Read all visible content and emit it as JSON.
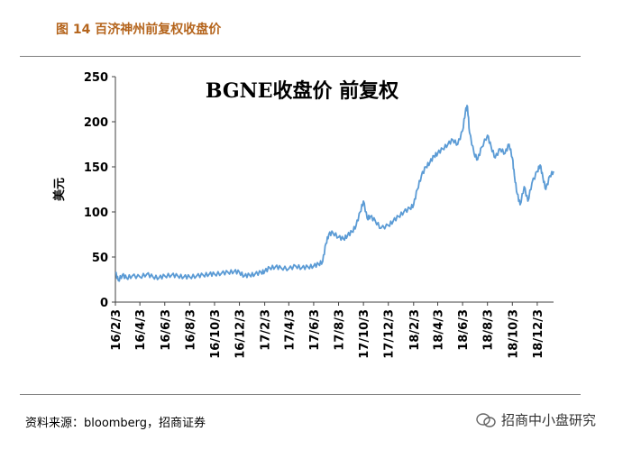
{
  "figure": {
    "caption": "图 14  百济神州前复权收盘价",
    "source": "资料来源：bloomberg，招商证券",
    "brand": "招商中小盘研究"
  },
  "colors": {
    "caption": "#b5651d",
    "line": "#5b9bd5",
    "axis": "#404040"
  },
  "chart_data": {
    "type": "line",
    "title": "BGNE收盘价 前复权",
    "xlabel": "",
    "ylabel": "美元",
    "ylim": [
      0,
      250
    ],
    "yticks": [
      0,
      50,
      100,
      150,
      200,
      250
    ],
    "xtick_labels": [
      "16/2/3",
      "16/4/3",
      "16/6/3",
      "16/8/3",
      "16/10/3",
      "16/12/3",
      "17/2/3",
      "17/4/3",
      "17/6/3",
      "17/8/3",
      "17/10/3",
      "17/12/3",
      "18/2/3",
      "18/4/3",
      "18/6/3",
      "18/8/3",
      "18/10/3",
      "18/12/3"
    ],
    "grid": false,
    "legend": "none",
    "series": [
      {
        "points": [
          [
            "2016-02-03",
            33
          ],
          [
            "2016-02-10",
            24
          ],
          [
            "2016-02-20",
            30
          ],
          [
            "2016-03-01",
            27
          ],
          [
            "2016-03-15",
            29
          ],
          [
            "2016-04-03",
            28
          ],
          [
            "2016-04-20",
            31
          ],
          [
            "2016-05-05",
            28
          ],
          [
            "2016-05-20",
            27
          ],
          [
            "2016-06-03",
            29
          ],
          [
            "2016-06-20",
            30
          ],
          [
            "2016-07-05",
            29
          ],
          [
            "2016-07-20",
            28
          ],
          [
            "2016-08-03",
            28
          ],
          [
            "2016-08-20",
            29
          ],
          [
            "2016-09-05",
            30
          ],
          [
            "2016-09-20",
            31
          ],
          [
            "2016-10-03",
            31
          ],
          [
            "2016-10-20",
            32
          ],
          [
            "2016-11-05",
            33
          ],
          [
            "2016-11-20",
            34
          ],
          [
            "2016-12-03",
            33
          ],
          [
            "2016-12-15",
            29
          ],
          [
            "2016-12-28",
            30
          ],
          [
            "2017-01-10",
            31
          ],
          [
            "2017-01-25",
            33
          ],
          [
            "2017-02-03",
            34
          ],
          [
            "2017-02-15",
            38
          ],
          [
            "2017-03-01",
            39
          ],
          [
            "2017-03-15",
            38
          ],
          [
            "2017-04-03",
            37
          ],
          [
            "2017-04-20",
            40
          ],
          [
            "2017-05-05",
            38
          ],
          [
            "2017-05-20",
            39
          ],
          [
            "2017-06-03",
            40
          ],
          [
            "2017-06-15",
            42
          ],
          [
            "2017-06-25",
            45
          ],
          [
            "2017-07-03",
            65
          ],
          [
            "2017-07-10",
            75
          ],
          [
            "2017-07-20",
            77
          ],
          [
            "2017-08-03",
            72
          ],
          [
            "2017-08-15",
            70
          ],
          [
            "2017-08-25",
            74
          ],
          [
            "2017-09-05",
            78
          ],
          [
            "2017-09-15",
            85
          ],
          [
            "2017-09-25",
            100
          ],
          [
            "2017-10-03",
            112
          ],
          [
            "2017-10-12",
            93
          ],
          [
            "2017-10-20",
            95
          ],
          [
            "2017-11-01",
            90
          ],
          [
            "2017-11-15",
            82
          ],
          [
            "2017-12-03",
            85
          ],
          [
            "2017-12-15",
            90
          ],
          [
            "2017-12-28",
            95
          ],
          [
            "2018-01-10",
            100
          ],
          [
            "2018-01-25",
            104
          ],
          [
            "2018-02-03",
            108
          ],
          [
            "2018-02-12",
            125
          ],
          [
            "2018-02-22",
            140
          ],
          [
            "2018-03-05",
            150
          ],
          [
            "2018-03-15",
            155
          ],
          [
            "2018-03-25",
            162
          ],
          [
            "2018-04-03",
            165
          ],
          [
            "2018-04-15",
            170
          ],
          [
            "2018-04-28",
            175
          ],
          [
            "2018-05-10",
            180
          ],
          [
            "2018-05-22",
            175
          ],
          [
            "2018-06-03",
            190
          ],
          [
            "2018-06-10",
            212
          ],
          [
            "2018-06-15",
            217
          ],
          [
            "2018-06-20",
            188
          ],
          [
            "2018-07-01",
            165
          ],
          [
            "2018-07-10",
            158
          ],
          [
            "2018-07-20",
            172
          ],
          [
            "2018-08-03",
            185
          ],
          [
            "2018-08-12",
            172
          ],
          [
            "2018-08-22",
            160
          ],
          [
            "2018-09-03",
            170
          ],
          [
            "2018-09-15",
            165
          ],
          [
            "2018-09-25",
            175
          ],
          [
            "2018-10-03",
            160
          ],
          [
            "2018-10-08",
            140
          ],
          [
            "2018-10-15",
            120
          ],
          [
            "2018-10-22",
            108
          ],
          [
            "2018-11-01",
            128
          ],
          [
            "2018-11-10",
            112
          ],
          [
            "2018-11-20",
            132
          ],
          [
            "2018-12-03",
            145
          ],
          [
            "2018-12-10",
            152
          ],
          [
            "2018-12-17",
            138
          ],
          [
            "2018-12-24",
            125
          ],
          [
            "2019-01-03",
            140
          ],
          [
            "2019-01-12",
            145
          ]
        ]
      }
    ]
  }
}
